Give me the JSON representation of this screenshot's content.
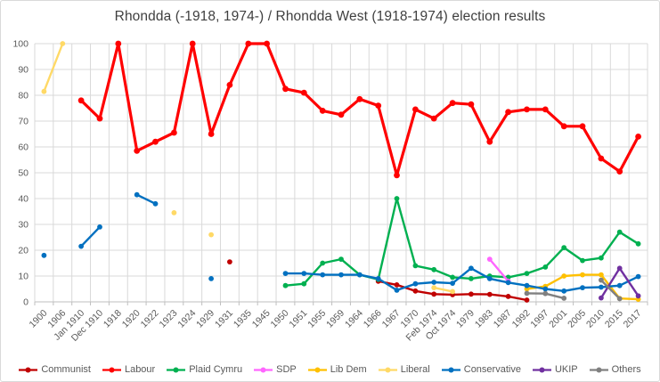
{
  "chart_data": {
    "type": "line",
    "title": "Rhondda (-1918, 1974-) / Rhondda West (1918-1974) election results",
    "xlabel": "",
    "ylabel": "",
    "grid": true,
    "legend_position": "bottom",
    "y_axis": {
      "min": 0,
      "max": 100,
      "step": 10,
      "tick_labels": [
        "0",
        "10",
        "20",
        "30",
        "40",
        "50",
        "60",
        "70",
        "80",
        "90",
        "100"
      ]
    },
    "categories": [
      "1900",
      "1906",
      "Jan 1910",
      "Dec 1910",
      "1918",
      "1920",
      "1922",
      "1923",
      "1924",
      "1929",
      "1931",
      "1935",
      "1945",
      "1950",
      "1951",
      "1955",
      "1959",
      "1964",
      "1966",
      "1967",
      "1970",
      "Feb 1974",
      "Oct 1974",
      "1979",
      "1983",
      "1987",
      "1992",
      "1997",
      "2001",
      "2005",
      "2010",
      "2015",
      "2017"
    ],
    "series": [
      {
        "name": "Communist",
        "color": "#c00000",
        "values": [
          null,
          null,
          null,
          null,
          null,
          null,
          null,
          null,
          null,
          null,
          15.5,
          null,
          null,
          null,
          null,
          null,
          null,
          null,
          8,
          6.6,
          4.2,
          3,
          2.8,
          3,
          2.9,
          2.1,
          0.7,
          null,
          null,
          null,
          null,
          null,
          null
        ]
      },
      {
        "name": "Labour",
        "color": "#ff0000",
        "values": [
          null,
          null,
          78,
          71,
          100,
          58.5,
          62,
          65.5,
          100,
          65,
          84,
          100,
          100,
          82.5,
          81,
          74,
          72.5,
          78.5,
          76,
          49,
          74.5,
          71,
          77,
          76.5,
          62,
          73.5,
          74.5,
          74.5,
          68,
          68,
          55.5,
          50.5,
          64
        ]
      },
      {
        "name": "Plaid Cymru",
        "color": "#00b050",
        "values": [
          null,
          null,
          null,
          null,
          null,
          null,
          null,
          null,
          null,
          null,
          null,
          null,
          null,
          6.3,
          7,
          15,
          16.5,
          10.5,
          8.7,
          40,
          14,
          12.5,
          9.5,
          9,
          10,
          9.5,
          11,
          13.5,
          21,
          16,
          17,
          27,
          22.5
        ]
      },
      {
        "name": "SDP",
        "color": "#ff66ff",
        "values": [
          null,
          null,
          null,
          null,
          null,
          null,
          null,
          null,
          null,
          null,
          null,
          null,
          null,
          null,
          null,
          null,
          null,
          null,
          null,
          null,
          null,
          null,
          null,
          null,
          16.5,
          8,
          null,
          null,
          null,
          null,
          null,
          null,
          null
        ]
      },
      {
        "name": "Lib Dem",
        "color": "#ffc000",
        "values": [
          null,
          null,
          null,
          null,
          null,
          null,
          null,
          null,
          null,
          null,
          null,
          null,
          null,
          null,
          null,
          null,
          null,
          null,
          null,
          null,
          null,
          null,
          null,
          null,
          null,
          null,
          5,
          6,
          10,
          10.5,
          10.5,
          1.3,
          1
        ]
      },
      {
        "name": "Liberal",
        "color": "#ffd966",
        "values": [
          81.5,
          100,
          null,
          null,
          null,
          null,
          null,
          34.5,
          null,
          26,
          null,
          null,
          null,
          null,
          null,
          null,
          null,
          null,
          null,
          null,
          null,
          5.5,
          4,
          null,
          null,
          null,
          null,
          null,
          null,
          null,
          null,
          null,
          null
        ]
      },
      {
        "name": "Conservative",
        "color": "#0070c0",
        "values": [
          18,
          null,
          21.5,
          29,
          null,
          41.5,
          38,
          null,
          null,
          9,
          null,
          null,
          null,
          11,
          11,
          10.5,
          10.5,
          10.5,
          9,
          4.5,
          7,
          7.6,
          7.2,
          13,
          9,
          7.5,
          6.3,
          5,
          4.2,
          5.5,
          5.7,
          6.3,
          9.8
        ]
      },
      {
        "name": "UKIP",
        "color": "#7030a0",
        "values": [
          null,
          null,
          null,
          null,
          null,
          null,
          null,
          null,
          null,
          null,
          null,
          null,
          null,
          null,
          null,
          null,
          null,
          null,
          null,
          null,
          null,
          null,
          null,
          null,
          null,
          null,
          null,
          null,
          null,
          null,
          1.5,
          13,
          2.3
        ]
      },
      {
        "name": "Others",
        "color": "#808080",
        "values": [
          null,
          null,
          null,
          null,
          null,
          null,
          null,
          null,
          null,
          null,
          null,
          null,
          null,
          null,
          null,
          null,
          null,
          null,
          null,
          null,
          null,
          null,
          null,
          null,
          null,
          null,
          3.3,
          3.2,
          1.4,
          null,
          8.4,
          1.2,
          null
        ]
      }
    ]
  },
  "colors": {
    "background": "#ffffff",
    "frame_border": "#d9d9d9",
    "gridline": "#d9d9d9",
    "axis_line": "#bfbfbf",
    "tick_label": "#595959",
    "title_text": "#3f3f3f"
  }
}
